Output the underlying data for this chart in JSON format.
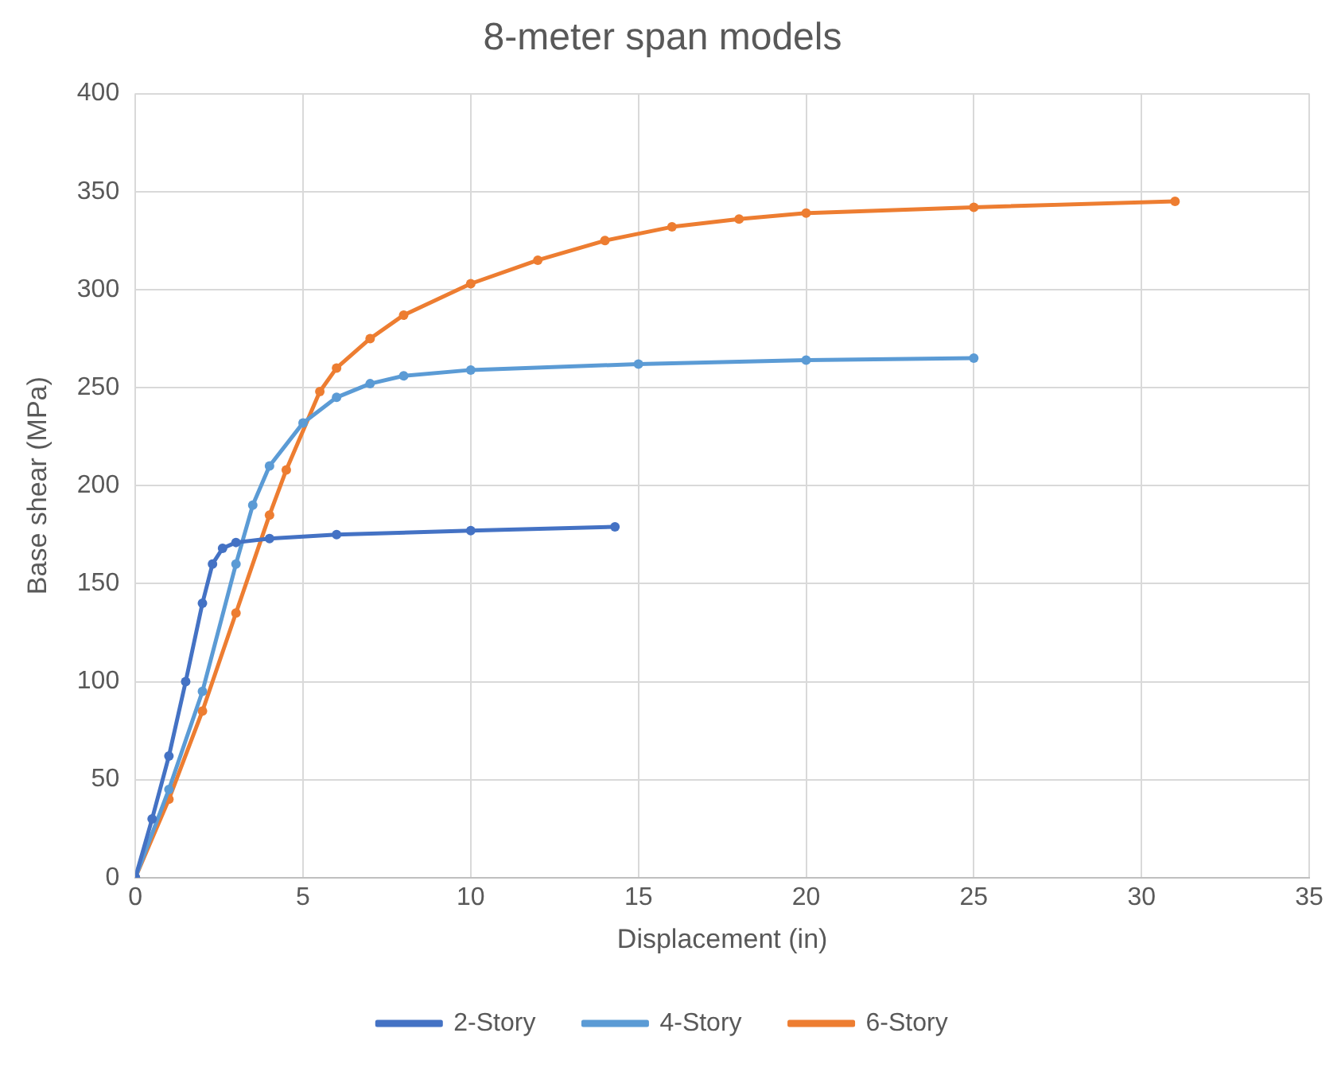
{
  "chart_data": {
    "type": "line",
    "title": "8-meter span models",
    "xlabel": "Displacement (in)",
    "ylabel": "Base shear (MPa)",
    "xlim": [
      0,
      35
    ],
    "xticks": [
      0,
      5,
      10,
      15,
      20,
      25,
      30,
      35
    ],
    "ylim": [
      0,
      400
    ],
    "yticks": [
      0,
      50,
      100,
      150,
      200,
      250,
      300,
      350,
      400
    ],
    "grid": true,
    "legend": "bottom",
    "marker": "circle",
    "line_style": "solid",
    "series": [
      {
        "name": "2-Story",
        "color": "#4472c4",
        "x": [
          0,
          0.5,
          1,
          1.5,
          2,
          2.3,
          2.6,
          3,
          4,
          6,
          10,
          14.3
        ],
        "values": [
          0,
          30,
          62,
          100,
          140,
          160,
          168,
          171,
          173,
          175,
          177,
          179
        ]
      },
      {
        "name": "4-Story",
        "color": "#5b9bd5",
        "x": [
          0,
          1,
          2,
          3,
          3.5,
          4,
          5,
          6,
          7,
          8,
          10,
          15,
          20,
          25
        ],
        "values": [
          0,
          45,
          95,
          160,
          190,
          210,
          232,
          245,
          252,
          256,
          259,
          262,
          264,
          265
        ]
      },
      {
        "name": "6-Story",
        "color": "#ed7d31",
        "x": [
          0,
          1,
          2,
          3,
          4,
          4.5,
          5.5,
          6,
          7,
          8,
          10,
          12,
          14,
          16,
          18,
          20,
          25,
          31
        ],
        "values": [
          0,
          40,
          85,
          135,
          185,
          208,
          248,
          260,
          275,
          287,
          303,
          315,
          325,
          332,
          336,
          339,
          342,
          345
        ]
      }
    ]
  }
}
